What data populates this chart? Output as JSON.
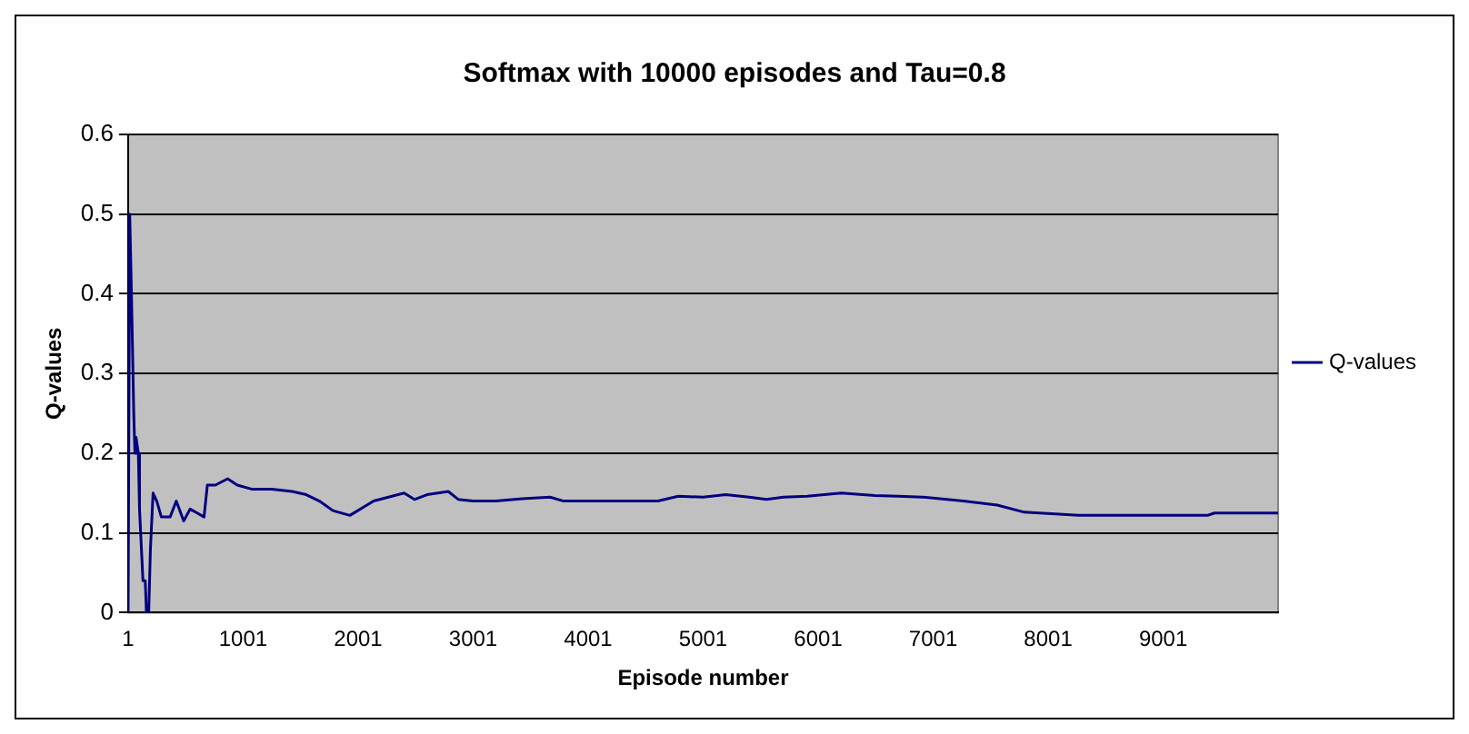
{
  "chart_data": {
    "type": "line",
    "title": "Softmax with 10000 episodes and Tau=0.8",
    "xlabel": "Episode number",
    "ylabel": "Q-values",
    "x": [
      1,
      15,
      30,
      50,
      60,
      70,
      90,
      100,
      110,
      130,
      150,
      160,
      180,
      195,
      218,
      250,
      290,
      366,
      420,
      484,
      540,
      602,
      661,
      690,
      760,
      867,
      950,
      1074,
      1250,
      1428,
      1550,
      1664,
      1782,
      1929,
      2136,
      2401,
      2490,
      2600,
      2785,
      2873,
      3000,
      3198,
      3428,
      3670,
      3788,
      4018,
      4300,
      4608,
      4785,
      5000,
      5198,
      5400,
      5552,
      5700,
      5906,
      6201,
      6496,
      6700,
      6909,
      7263,
      7558,
      7794,
      8030,
      8266,
      8700,
      9000,
      9387,
      9446,
      9700,
      10000
    ],
    "series": [
      {
        "name": "Q-values",
        "color": "#000080",
        "values": [
          0,
          0.5,
          0.4,
          0.25,
          0.2,
          0.22,
          0.2,
          0.13,
          0.1,
          0.04,
          0.04,
          0,
          0,
          0.08,
          0.15,
          0.14,
          0.12,
          0.12,
          0.14,
          0.115,
          0.13,
          0.125,
          0.12,
          0.16,
          0.16,
          0.168,
          0.16,
          0.155,
          0.155,
          0.152,
          0.148,
          0.14,
          0.128,
          0.122,
          0.14,
          0.15,
          0.142,
          0.148,
          0.152,
          0.142,
          0.14,
          0.14,
          0.143,
          0.145,
          0.14,
          0.14,
          0.14,
          0.14,
          0.146,
          0.145,
          0.148,
          0.145,
          0.142,
          0.145,
          0.146,
          0.15,
          0.147,
          0.146,
          0.145,
          0.14,
          0.135,
          0.126,
          0.124,
          0.122,
          0.122,
          0.122,
          0.122,
          0.125,
          0.125,
          0.125
        ]
      }
    ],
    "xlim": [
      1,
      10000
    ],
    "xticks": [
      1,
      1001,
      2001,
      3001,
      4001,
      5001,
      6001,
      7001,
      8001,
      9001
    ],
    "ylim": [
      0,
      0.6
    ],
    "yticks": [
      0,
      0.1,
      0.2,
      0.3,
      0.4,
      0.5,
      0.6
    ],
    "grid": "y",
    "legend": "right",
    "marker": "none",
    "line_style": "solid"
  }
}
